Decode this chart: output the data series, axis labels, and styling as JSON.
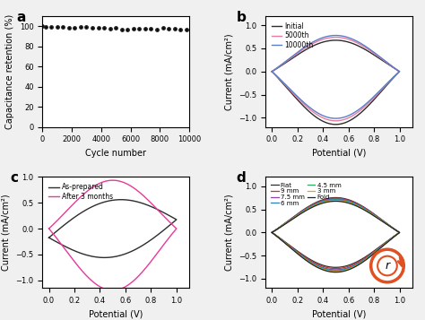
{
  "panel_a": {
    "label": "a",
    "xlabel": "Cycle number",
    "ylabel": "Capacitance retention (%)",
    "ylim": [
      0,
      110
    ],
    "xlim": [
      0,
      10000
    ],
    "xticks": [
      0,
      2000,
      4000,
      6000,
      8000,
      10000
    ],
    "yticks": [
      0,
      20,
      40,
      60,
      80,
      100
    ],
    "dot_color": "#222222"
  },
  "panel_b": {
    "label": "b",
    "xlabel": "Potential (V)",
    "ylabel": "Current (mA/cm²)",
    "ylim": [
      -1.2,
      1.2
    ],
    "xlim": [
      -0.05,
      1.1
    ],
    "xticks": [
      0.0,
      0.2,
      0.4,
      0.6,
      0.8,
      1.0
    ],
    "yticks": [
      -1.0,
      -0.5,
      0.0,
      0.5,
      1.0
    ],
    "legend": [
      "Initial",
      "5000th",
      "10000th"
    ],
    "colors": [
      "#2d2d2d",
      "#e87ca0",
      "#5b7ec9"
    ]
  },
  "panel_c": {
    "label": "c",
    "xlabel": "Potential (V)",
    "ylabel": "Current (mA/cm²)",
    "ylim": [
      -1.15,
      1.0
    ],
    "xlim": [
      -0.05,
      1.1
    ],
    "xticks": [
      0.0,
      0.2,
      0.4,
      0.6,
      0.8,
      1.0
    ],
    "yticks": [
      -1.0,
      -0.5,
      0.0,
      0.5,
      1.0
    ],
    "legend": [
      "As-prepared",
      "After 3 months"
    ],
    "colors": [
      "#2d2d2d",
      "#e8399a"
    ]
  },
  "panel_d": {
    "label": "d",
    "xlabel": "Potential (V)",
    "ylabel": "Current (mA/cm²)",
    "ylim": [
      -1.2,
      1.2
    ],
    "xlim": [
      -0.05,
      1.1
    ],
    "xticks": [
      0.0,
      0.2,
      0.4,
      0.6,
      0.8,
      1.0
    ],
    "yticks": [
      -1.0,
      -0.5,
      0.0,
      0.5,
      1.0
    ],
    "legend": [
      "Flat",
      "9 mm",
      "7.5 mm",
      "6 mm",
      "4.5 mm",
      "3 mm",
      "Fold"
    ],
    "colors": [
      "#2d2d2d",
      "#c0392b",
      "#8e44ad",
      "#2980b9",
      "#27ae60",
      "#f39c12",
      "#1a252f"
    ]
  },
  "bg_color": "#f0f0f0",
  "fontsize": 7
}
